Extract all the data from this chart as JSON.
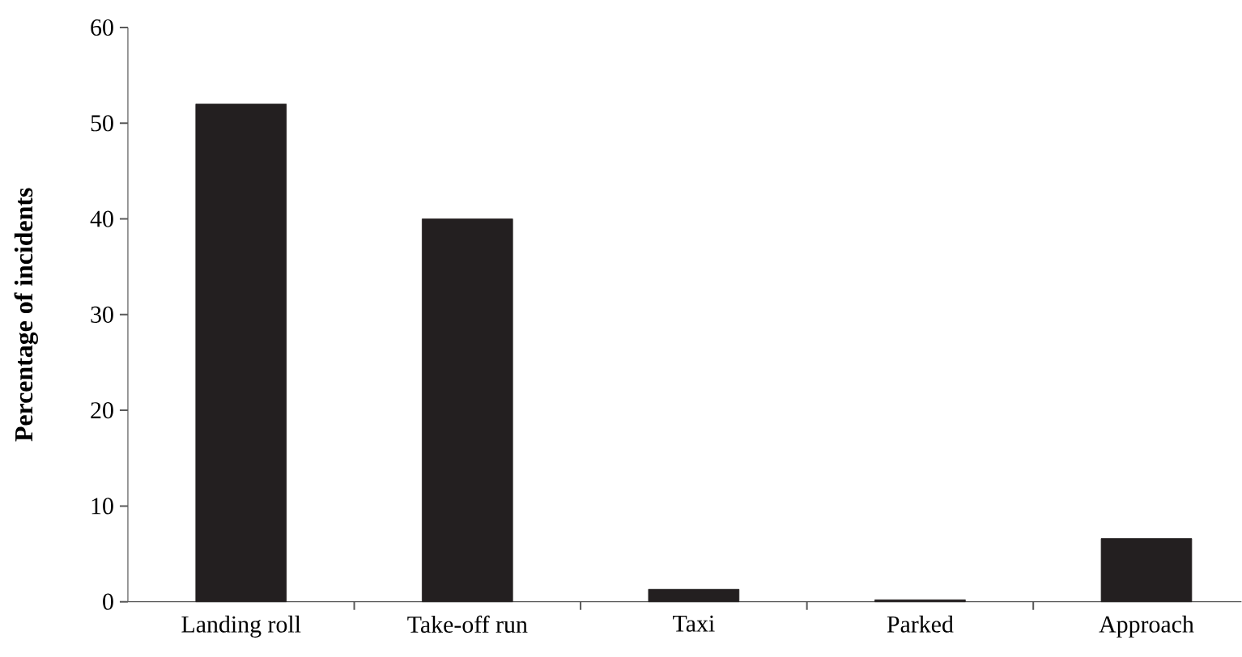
{
  "chart_data": {
    "type": "bar",
    "ylabel": "Percentage of incidents",
    "categories": [
      "Landing roll",
      "Take-off run",
      "Taxi",
      "Parked",
      "Approach"
    ],
    "values": [
      52,
      40,
      1.3,
      0.2,
      6.6
    ],
    "color": "#231f20",
    "ylim": [
      0,
      60
    ],
    "yticks": [
      0,
      10,
      20,
      30,
      40,
      50,
      60
    ],
    "grid": false
  }
}
